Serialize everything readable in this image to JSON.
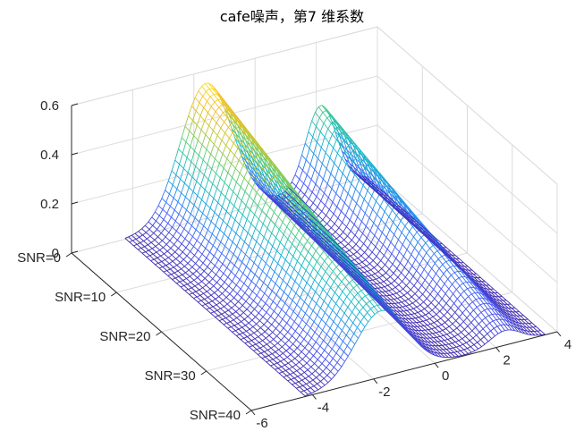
{
  "chart_data": {
    "type": "surface",
    "title": "cafe噪声，第7 维系数",
    "xlabel": "",
    "ylabel": "",
    "zlabel": "",
    "x_ticks": [
      -6,
      -4,
      -2,
      0,
      2,
      4
    ],
    "x_range": [
      -6,
      4
    ],
    "y_tick_labels": [
      "SNR=0",
      "SNR=10",
      "SNR=20",
      "SNR=30",
      "SNR=40"
    ],
    "snr_range": [
      0,
      40
    ],
    "z_ticks": [
      0,
      0.2,
      0.4,
      0.6
    ],
    "z_range": [
      0,
      0.6
    ],
    "grid": true,
    "colormap": "parula",
    "mode_centers": [
      -1.6,
      2.15
    ],
    "mode_widths": [
      0.85,
      0.5
    ],
    "mode_weights_snr0": [
      0.55,
      0.34
    ],
    "mode_weights_snr40": [
      0.27,
      0.06
    ],
    "peak_z": 0.58
  }
}
